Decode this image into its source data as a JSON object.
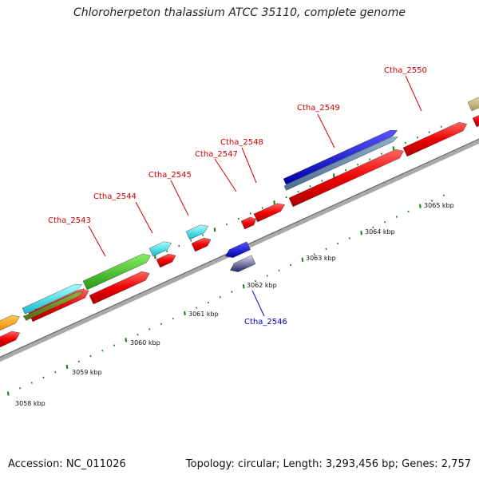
{
  "title": "Chloroherpeton thalassium ATCC 35110, complete genome",
  "footer": {
    "accession": "Accession: NC_011026",
    "summary": "Topology: circular; Length: 3,293,456 bp; Genes: 2,757"
  },
  "scale": {
    "unit": "kbp",
    "major_ticks": [
      {
        "kbp": 3058,
        "label": "3058 kbp"
      },
      {
        "kbp": 3059,
        "label": "3059 kbp"
      },
      {
        "kbp": 3060,
        "label": "3060 kbp"
      },
      {
        "kbp": 3061,
        "label": "3061 kbp"
      },
      {
        "kbp": 3062,
        "label": "3062 kbp"
      },
      {
        "kbp": 3063,
        "label": "3063 kbp"
      },
      {
        "kbp": 3064,
        "label": "3064 kbp"
      },
      {
        "kbp": 3065,
        "label": "3065 kbp"
      }
    ]
  },
  "gene_labels": [
    {
      "name": "Ctha_2543",
      "color": "#cc0000",
      "strand": "forward"
    },
    {
      "name": "Ctha_2544",
      "color": "#cc0000",
      "strand": "forward"
    },
    {
      "name": "Ctha_2545",
      "color": "#cc0000",
      "strand": "forward"
    },
    {
      "name": "Ctha_2546",
      "color": "#0000cc",
      "strand": "reverse"
    },
    {
      "name": "Ctha_2547",
      "color": "#cc0000",
      "strand": "forward"
    },
    {
      "name": "Ctha_2548",
      "color": "#cc0000",
      "strand": "forward"
    },
    {
      "name": "Ctha_2549",
      "color": "#cc0000",
      "strand": "forward"
    },
    {
      "name": "Ctha_2550",
      "color": "#cc0000",
      "strand": "forward"
    }
  ],
  "colors": {
    "cds": "#ee0000",
    "backbone": "#999999",
    "tick": "#1a7a1a",
    "cog_green": "#44cc33",
    "cog_cyan": "#22dddd",
    "cog_blue": "#1111cc",
    "cog_olive": "#667722",
    "cog_orange": "#ff9900",
    "cog_tan": "#c8b87a"
  }
}
